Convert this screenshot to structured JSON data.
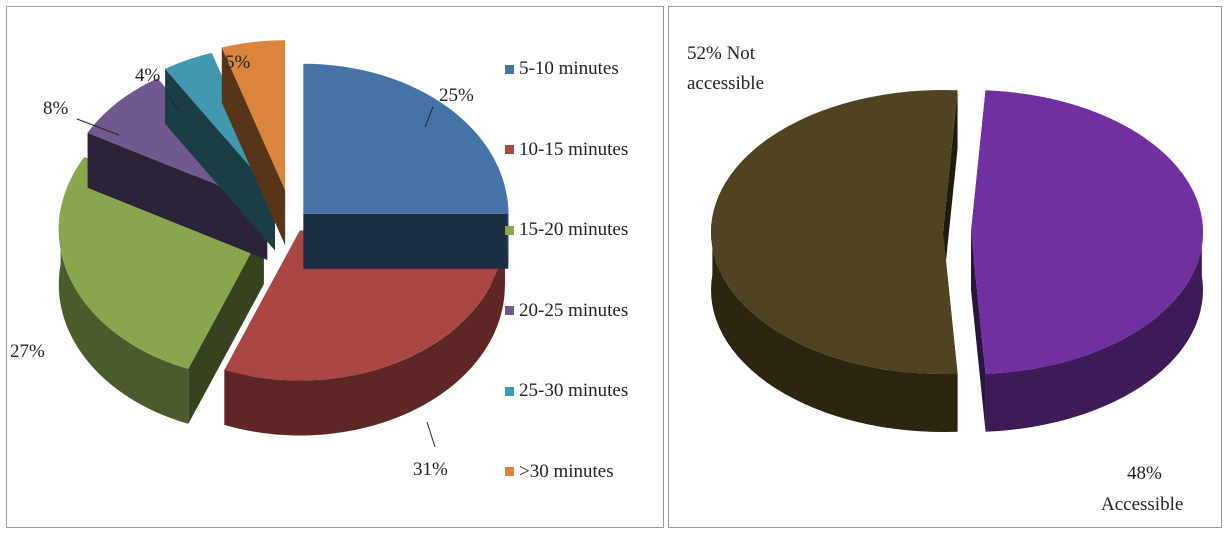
{
  "chart_data": [
    {
      "type": "pie",
      "title": "",
      "categories": [
        "5-10 minutes",
        "10-15 minutes",
        "15-20 minutes",
        "20-25 minutes",
        "25-30 minutes",
        ">30 minutes"
      ],
      "values": [
        25,
        31,
        27,
        8,
        4,
        5
      ],
      "data_labels": [
        "25%",
        "31%",
        "27%",
        "8%",
        "4%",
        "5%"
      ],
      "colors": [
        "#4572a7",
        "#aa4643",
        "#89a54e",
        "#71588f",
        "#4198af",
        "#db843d"
      ],
      "exploded": true,
      "style": "3d",
      "legend": {
        "position": "right",
        "items": [
          "5-10 minutes",
          "10-15 minutes",
          "15-20 minutes",
          "20-25 minutes",
          "25-30 minutes",
          ">30 minutes"
        ]
      }
    },
    {
      "type": "pie",
      "title": "",
      "categories": [
        "Not accessible",
        "Accessible"
      ],
      "values": [
        52,
        48
      ],
      "data_labels": [
        {
          "line1": "52% Not",
          "line2": "accessible"
        },
        {
          "line1": "48%",
          "line2": "Accessible"
        }
      ],
      "colors": [
        "#4f4321",
        "#7030a0"
      ],
      "exploded": true,
      "style": "3d"
    }
  ]
}
